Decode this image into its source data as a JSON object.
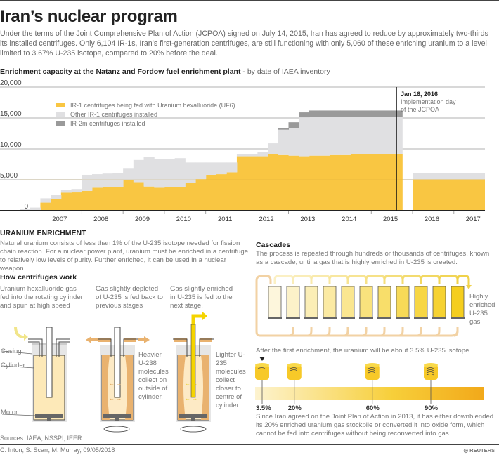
{
  "header": {
    "title": "Iran’s nuclear program",
    "intro": "Under the terms of the Joint Comprehensive Plan of Action (JCPOA) signed on July 14, 2015, Iran has agreed to reduce by approximately two-thirds its installed centrifuges. Only 6,104 IR-1s, Iran’s first-generation centrifuges, are still functioning with only 5,060 of these enriching uranium to a level limited to 3.67% U-235 isotope, compared to 20% before the deal."
  },
  "chart_data": {
    "type": "area",
    "title": "Enrichment capacity at the Natanz and Fordow fuel enrichment plant",
    "subtitle": "- by date of IAEA inventory",
    "xlabel": "",
    "ylabel": "",
    "ylim": [
      0,
      20000
    ],
    "yticks": [
      "20,000",
      "15,000",
      "10,000",
      "5,000",
      "0"
    ],
    "ytick_values": [
      20000,
      15000,
      10000,
      5000,
      0
    ],
    "xlim": [
      2006.5,
      2017.75
    ],
    "xticks": [
      "2007",
      "2008",
      "2009",
      "2010",
      "2011",
      "2012",
      "2013",
      "2014",
      "2015",
      "2016",
      "2017"
    ],
    "grid": true,
    "legend_position": "top-left",
    "legend": [
      {
        "name": "IR-1 centrifuges being fed with Uranium hexalluoride (UF6)",
        "color": "#f9c642"
      },
      {
        "name": "Other IR-1 centrifuges installed",
        "color": "#e0e0e2"
      },
      {
        "name": "IR-2m centrifuges installed",
        "color": "#9a9a9a"
      }
    ],
    "x": [
      2006.5,
      2006.75,
      2007.0,
      2007.25,
      2007.5,
      2007.75,
      2008.0,
      2008.25,
      2008.5,
      2008.75,
      2009.0,
      2009.25,
      2009.5,
      2009.75,
      2010.0,
      2010.25,
      2010.5,
      2010.75,
      2011.0,
      2011.25,
      2011.5,
      2011.75,
      2012.0,
      2012.25,
      2012.5,
      2012.75,
      2013.0,
      2013.25,
      2013.5,
      2013.75,
      2014.0,
      2014.25,
      2014.5,
      2014.75,
      2015.0,
      2015.25,
      2015.5,
      2015.75,
      2016.0,
      2016.5,
      2017.0,
      2017.5
    ],
    "series": [
      {
        "name": "IR-1 centrifuges being fed with Uranium hexalluoride (UF6)",
        "values": [
          0,
          0,
          1300,
          1900,
          2900,
          2950,
          3200,
          3700,
          3800,
          3850,
          4900,
          4600,
          3900,
          3700,
          3800,
          3800,
          4500,
          5100,
          5800,
          5900,
          6200,
          8800,
          8800,
          8800,
          9100,
          9000,
          8900,
          8800,
          8900,
          8900,
          9000,
          9000,
          9100,
          9100,
          9100,
          9100,
          9100,
          0,
          5060,
          5060,
          5060,
          5060
        ]
      },
      {
        "name": "Other IR-1 centrifuges installed",
        "values": [
          300,
          500,
          700,
          600,
          500,
          550,
          2600,
          2200,
          2200,
          2200,
          2000,
          3600,
          4800,
          4700,
          4600,
          4700,
          3300,
          2700,
          2000,
          1900,
          1600,
          300,
          300,
          700,
          1800,
          4100,
          4500,
          6300,
          6300,
          6300,
          6200,
          6200,
          6100,
          6100,
          6100,
          6100,
          6100,
          0,
          1044,
          1044,
          1044,
          1044
        ]
      },
      {
        "name": "IR-2m centrifuges installed",
        "values": [
          0,
          0,
          0,
          0,
          0,
          0,
          0,
          0,
          0,
          0,
          0,
          0,
          0,
          0,
          0,
          0,
          0,
          0,
          0,
          0,
          0,
          0,
          0,
          0,
          0,
          200,
          900,
          800,
          1000,
          1000,
          1000,
          1000,
          1000,
          1000,
          1000,
          1000,
          1000,
          0,
          0,
          0,
          0,
          0
        ]
      }
    ],
    "annotations": [
      {
        "x": "Jan 16, 2016",
        "title": "Jan 16, 2016",
        "text": "Implementation day of the JCPOA"
      }
    ]
  },
  "enrichment": {
    "heading": "URANIUM ENRICHMENT",
    "text": "Natural uranium consists of less than 1% of the U-235 isotope needed for fission chain reaction. For a nuclear power plant, uranium must be enriched in a centrifuge to relatively low levels of purity. Further enriched, it can be used in a nuclear weapon."
  },
  "centrifuges": {
    "heading": "How centrifuges work",
    "step1": "Uranium hexalluoride gas fed into the rotating cylinder and spun at high speed",
    "step2": "Gas slightly depleted of U-235 is fed back to previous stages",
    "step3": "Gas slightly enriched in U-235 is fed to the next stage.",
    "labels": {
      "casing": "Casing",
      "cylinder": "Cylinder",
      "motor": "Motor"
    },
    "heavier": "Heavier U-238 molecules collect on outside of cylinder.",
    "lighter": "Lighter U-235 molecules collect closer to centre of cylinder."
  },
  "cascades": {
    "heading": "Cascades",
    "text": "The process is repeated through hundreds or thousands of centrifuges, known as a cascade, until a gas that is highly enriched in U-235 is created.",
    "output_label": "Highly enriched U-235 gas",
    "count": 11,
    "after_text": "After the first enrichment, the uranium will be about 3.5% U-235 isotope",
    "levels": [
      {
        "label": "3.5%",
        "value": 3.5
      },
      {
        "label": "20%",
        "value": 20
      },
      {
        "label": "60%",
        "value": 60
      },
      {
        "label": "90%",
        "value": 90
      }
    ],
    "note": "Since Iran agreed on the Joint Plan of Action in 2013, it has either downblended its 20% enriched uranium gas stockpile or converted it into oxide form, which cannot be fed into centrifuges without being reconverted into gas."
  },
  "footer": {
    "sources": "Sources: IAEA; NSSPI; IEER",
    "credit": "C. Inton, S. Scarr, M. Murray, 09/05/2018",
    "brand": "REUTERS"
  },
  "colors": {
    "ir1_fed": "#f9c642",
    "ir1_other": "#e0e0e2",
    "ir2m": "#9a9a9a"
  }
}
